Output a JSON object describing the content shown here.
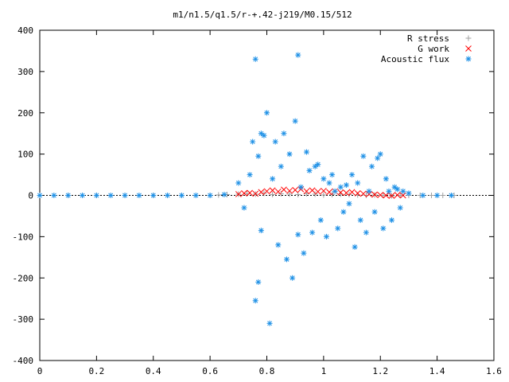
{
  "chart_data": {
    "type": "scatter",
    "title": "m1/n1.5/q1.5/r-+.42-j219/M0.15/512",
    "xlabel": "",
    "ylabel": "",
    "xlim": [
      0,
      1.6
    ],
    "ylim": [
      -400,
      400
    ],
    "x_ticks": [
      "0",
      "0.2",
      "0.4",
      "0.6",
      "0.8",
      "1",
      "1.2",
      "1.4",
      "1.6"
    ],
    "y_ticks": [
      "400",
      "300",
      "200",
      "100",
      "0",
      "-100",
      "-200",
      "-300",
      "-400"
    ],
    "grid": false,
    "legend_position": "top-right",
    "series": [
      {
        "name": "R stress",
        "marker": "plus",
        "color": "#a0a0a0",
        "x": [
          0.0,
          0.1,
          0.2,
          0.3,
          0.4,
          0.5,
          0.6,
          0.63,
          0.66,
          0.7,
          0.73,
          0.76,
          0.79,
          0.82,
          0.85,
          0.88,
          0.91,
          0.94,
          0.97,
          1.0,
          1.03,
          1.06,
          1.09,
          1.12,
          1.15,
          1.18,
          1.21,
          1.24,
          1.27,
          1.3,
          1.34,
          1.38,
          1.42,
          1.46
        ],
        "y": [
          0,
          0,
          0,
          0,
          0,
          0,
          0,
          1,
          2,
          3,
          4,
          3,
          5,
          2,
          4,
          3,
          2,
          4,
          3,
          1,
          2,
          3,
          2,
          1,
          0,
          1,
          0,
          -1,
          0,
          0,
          0,
          0,
          0,
          0
        ]
      },
      {
        "name": "G work",
        "marker": "cross",
        "color": "#ff0000",
        "x": [
          0.7,
          0.72,
          0.74,
          0.76,
          0.78,
          0.8,
          0.82,
          0.84,
          0.86,
          0.88,
          0.9,
          0.92,
          0.94,
          0.96,
          0.98,
          1.0,
          1.02,
          1.04,
          1.06,
          1.08,
          1.1,
          1.12,
          1.14,
          1.16,
          1.18,
          1.2,
          1.22,
          1.24,
          1.26,
          1.28
        ],
        "y": [
          3,
          5,
          6,
          4,
          8,
          10,
          12,
          9,
          14,
          11,
          13,
          15,
          10,
          12,
          9,
          11,
          8,
          10,
          7,
          6,
          8,
          5,
          4,
          3,
          2,
          1,
          0,
          -1,
          1,
          0
        ]
      },
      {
        "name": "Acoustic flux",
        "marker": "star",
        "color": "#1e90e6",
        "x": [
          0.0,
          0.05,
          0.1,
          0.15,
          0.2,
          0.25,
          0.3,
          0.35,
          0.4,
          0.45,
          0.5,
          0.55,
          0.6,
          0.65,
          0.7,
          0.72,
          0.74,
          0.75,
          0.76,
          0.76,
          0.77,
          0.77,
          0.78,
          0.78,
          0.79,
          0.8,
          0.81,
          0.82,
          0.83,
          0.84,
          0.85,
          0.86,
          0.87,
          0.88,
          0.89,
          0.9,
          0.91,
          0.91,
          0.92,
          0.93,
          0.94,
          0.95,
          0.96,
          0.97,
          0.98,
          0.99,
          1.0,
          1.01,
          1.02,
          1.03,
          1.04,
          1.05,
          1.06,
          1.07,
          1.08,
          1.09,
          1.1,
          1.11,
          1.12,
          1.13,
          1.14,
          1.15,
          1.16,
          1.17,
          1.18,
          1.19,
          1.2,
          1.21,
          1.22,
          1.23,
          1.24,
          1.25,
          1.26,
          1.27,
          1.28,
          1.3,
          1.35,
          1.4,
          1.45
        ],
        "y": [
          0,
          0,
          0,
          0,
          0,
          0,
          0,
          0,
          0,
          0,
          0,
          0,
          0,
          2,
          30,
          -30,
          50,
          130,
          330,
          -255,
          95,
          -210,
          150,
          -85,
          145,
          200,
          -310,
          40,
          130,
          -120,
          70,
          150,
          -155,
          100,
          -200,
          180,
          340,
          -95,
          20,
          -140,
          105,
          60,
          -90,
          70,
          75,
          -60,
          40,
          -100,
          30,
          50,
          10,
          -80,
          20,
          -40,
          25,
          -20,
          50,
          -125,
          30,
          -60,
          95,
          -90,
          10,
          70,
          -40,
          90,
          100,
          -80,
          40,
          10,
          -60,
          20,
          15,
          -30,
          10,
          5,
          0,
          0,
          0
        ]
      }
    ]
  }
}
